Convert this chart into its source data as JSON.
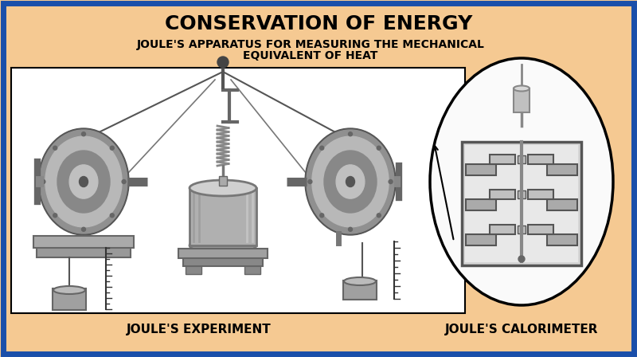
{
  "title": "CONSERVATION OF ENERGY",
  "subtitle_line1": "JOULE'S APPARATUS FOR MEASURING THE MECHANICAL",
  "subtitle_line2": "EQUIVALENT OF HEAT",
  "label_left": "JOULE'S EXPERIMENT",
  "label_right": "JOULE'S CALORIMETER",
  "bg_color": "#F5C992",
  "border_color": "#1A4FAA",
  "inner_box_color": "#FFFFFF",
  "title_color": "#000000",
  "subtitle_color": "#000000",
  "label_color": "#000000",
  "border_linewidth": 5,
  "inner_border_linewidth": 1.5,
  "figure_width": 8.0,
  "figure_height": 4.48,
  "dpi": 100
}
